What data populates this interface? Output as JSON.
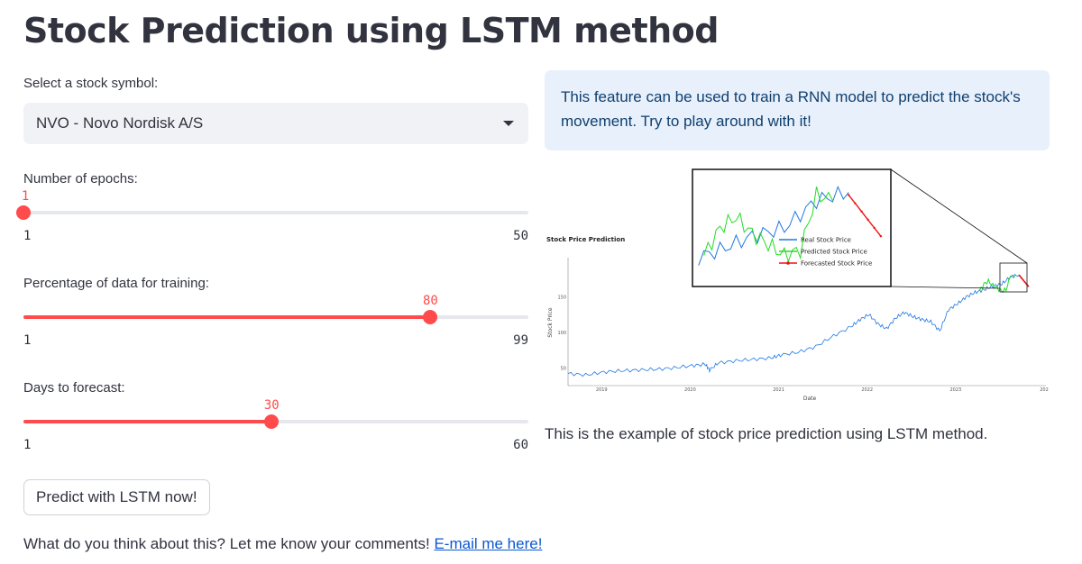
{
  "page": {
    "title": "Stock Prediction using LSTM method"
  },
  "stock_select": {
    "label": "Select a stock symbol:",
    "value": "NVO - Novo Nordisk A/S"
  },
  "sliders": [
    {
      "label": "Number of epochs:",
      "value": 1,
      "min": 1,
      "max": 50,
      "value_text": "1",
      "min_text": "1",
      "max_text": "50"
    },
    {
      "label": "Percentage of data for training:",
      "value": 80,
      "min": 1,
      "max": 99,
      "value_text": "80",
      "min_text": "1",
      "max_text": "99"
    },
    {
      "label": "Days to forecast:",
      "value": 30,
      "min": 1,
      "max": 60,
      "value_text": "30",
      "min_text": "1",
      "max_text": "60"
    }
  ],
  "predict_button": {
    "label": "Predict with LSTM now!"
  },
  "footer": {
    "text": "What do you think about this? Let me know your comments! ",
    "link_text": "E-mail me here!"
  },
  "info_box": {
    "text": "This feature can be used to train a RNN model to predict the stock's movement. Try to play around with it!"
  },
  "caption": "This is the example of stock price prediction using LSTM method.",
  "colors": {
    "accent": "#ff4b4b",
    "real": "#1f77e4",
    "predicted": "#22dd22",
    "forecast": "#ee1111"
  },
  "chart_data": {
    "type": "line",
    "title": "Stock Price Prediction",
    "xlabel": "Date",
    "ylabel": "Stock Price",
    "x_ticks": [
      "2019",
      "2020",
      "2021",
      "2022",
      "2023",
      "202"
    ],
    "y_ticks": [
      "50",
      "100",
      "150"
    ],
    "xlim": [
      2018.6,
      2024.0
    ],
    "ylim": [
      25,
      205
    ],
    "legend": [
      "Real Stock Price",
      "Predicted Stock Price",
      "Forecasted Stock Price"
    ],
    "legend_position": "inset",
    "series": [
      {
        "name": "Real Stock Price",
        "x": [
          2018.6,
          2018.8,
          2019.0,
          2019.2,
          2019.4,
          2019.6,
          2019.8,
          2020.0,
          2020.15,
          2020.2,
          2020.3,
          2020.5,
          2020.7,
          2020.9,
          2021.0,
          2021.2,
          2021.4,
          2021.6,
          2021.8,
          2021.9,
          2022.0,
          2022.1,
          2022.2,
          2022.3,
          2022.4,
          2022.5,
          2022.6,
          2022.7,
          2022.8,
          2022.9,
          2023.0,
          2023.1,
          2023.2,
          2023.3,
          2023.4,
          2023.5,
          2023.6,
          2023.7
        ],
        "y": [
          42,
          40,
          44,
          46,
          47,
          48,
          50,
          53,
          55,
          47,
          57,
          60,
          62,
          64,
          68,
          72,
          80,
          95,
          108,
          118,
          125,
          112,
          105,
          120,
          128,
          122,
          118,
          115,
          102,
          132,
          140,
          150,
          156,
          160,
          165,
          168,
          178,
          181
        ]
      },
      {
        "name": "Predicted Stock Price",
        "x": [
          2023.25,
          2023.3,
          2023.35,
          2023.4,
          2023.45,
          2023.5,
          2023.55,
          2023.6,
          2023.65
        ],
        "y": [
          158,
          168,
          172,
          166,
          162,
          158,
          160,
          180,
          178
        ]
      },
      {
        "name": "Forecasted Stock Price",
        "x": [
          2023.7,
          2023.72,
          2023.74,
          2023.76,
          2023.78,
          2023.8
        ],
        "y": [
          180,
          177,
          174,
          171,
          168,
          165
        ]
      }
    ]
  }
}
